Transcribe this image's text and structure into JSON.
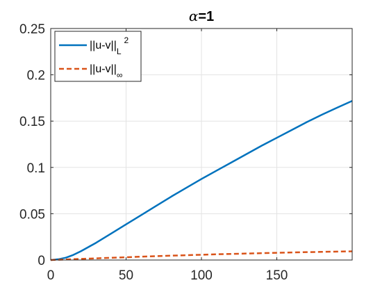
{
  "chart_data": {
    "type": "line",
    "title": "α=1",
    "title_parts": {
      "symbol": "α",
      "rest": "=1"
    },
    "xlabel": "",
    "ylabel": "",
    "xlim": [
      0,
      200
    ],
    "ylim": [
      0,
      0.25
    ],
    "x_ticks": [
      0,
      50,
      100,
      150
    ],
    "x_tick_labels": [
      "0",
      "50",
      "100",
      "150"
    ],
    "y_ticks": [
      0,
      0.05,
      0.1,
      0.15,
      0.2,
      0.25
    ],
    "y_tick_labels": [
      "0",
      "0.05",
      "0.1",
      "0.15",
      "0.2",
      "0.25"
    ],
    "grid": true,
    "legend_position": "top-left",
    "series": [
      {
        "name": "||u-v||",
        "name_sub": "L",
        "name_sup": "2",
        "color": "#0072BD",
        "line_style": "solid",
        "x": [
          0,
          5,
          10,
          15,
          20,
          25,
          30,
          40,
          50,
          60,
          70,
          80,
          90,
          100,
          110,
          120,
          130,
          140,
          150,
          160,
          170,
          180,
          190,
          200
        ],
        "y": [
          0,
          0.0008,
          0.0025,
          0.0055,
          0.0095,
          0.014,
          0.0185,
          0.0285,
          0.0385,
          0.0485,
          0.0585,
          0.0685,
          0.078,
          0.0875,
          0.0965,
          0.1055,
          0.1145,
          0.1235,
          0.132,
          0.1405,
          0.149,
          0.157,
          0.1645,
          0.1718
        ]
      },
      {
        "name": "||u-v||",
        "name_sub": "∞",
        "name_sup": "",
        "color": "#D95319",
        "line_style": "dashed",
        "x": [
          0,
          10,
          20,
          30,
          40,
          50,
          60,
          70,
          80,
          90,
          100,
          110,
          120,
          130,
          140,
          150,
          160,
          170,
          180,
          190,
          200
        ],
        "y": [
          0,
          0.0006,
          0.0012,
          0.0018,
          0.0024,
          0.003,
          0.0036,
          0.0042,
          0.0047,
          0.0052,
          0.0057,
          0.0062,
          0.0066,
          0.007,
          0.0074,
          0.0078,
          0.0082,
          0.0085,
          0.0088,
          0.0091,
          0.0094
        ]
      }
    ]
  }
}
